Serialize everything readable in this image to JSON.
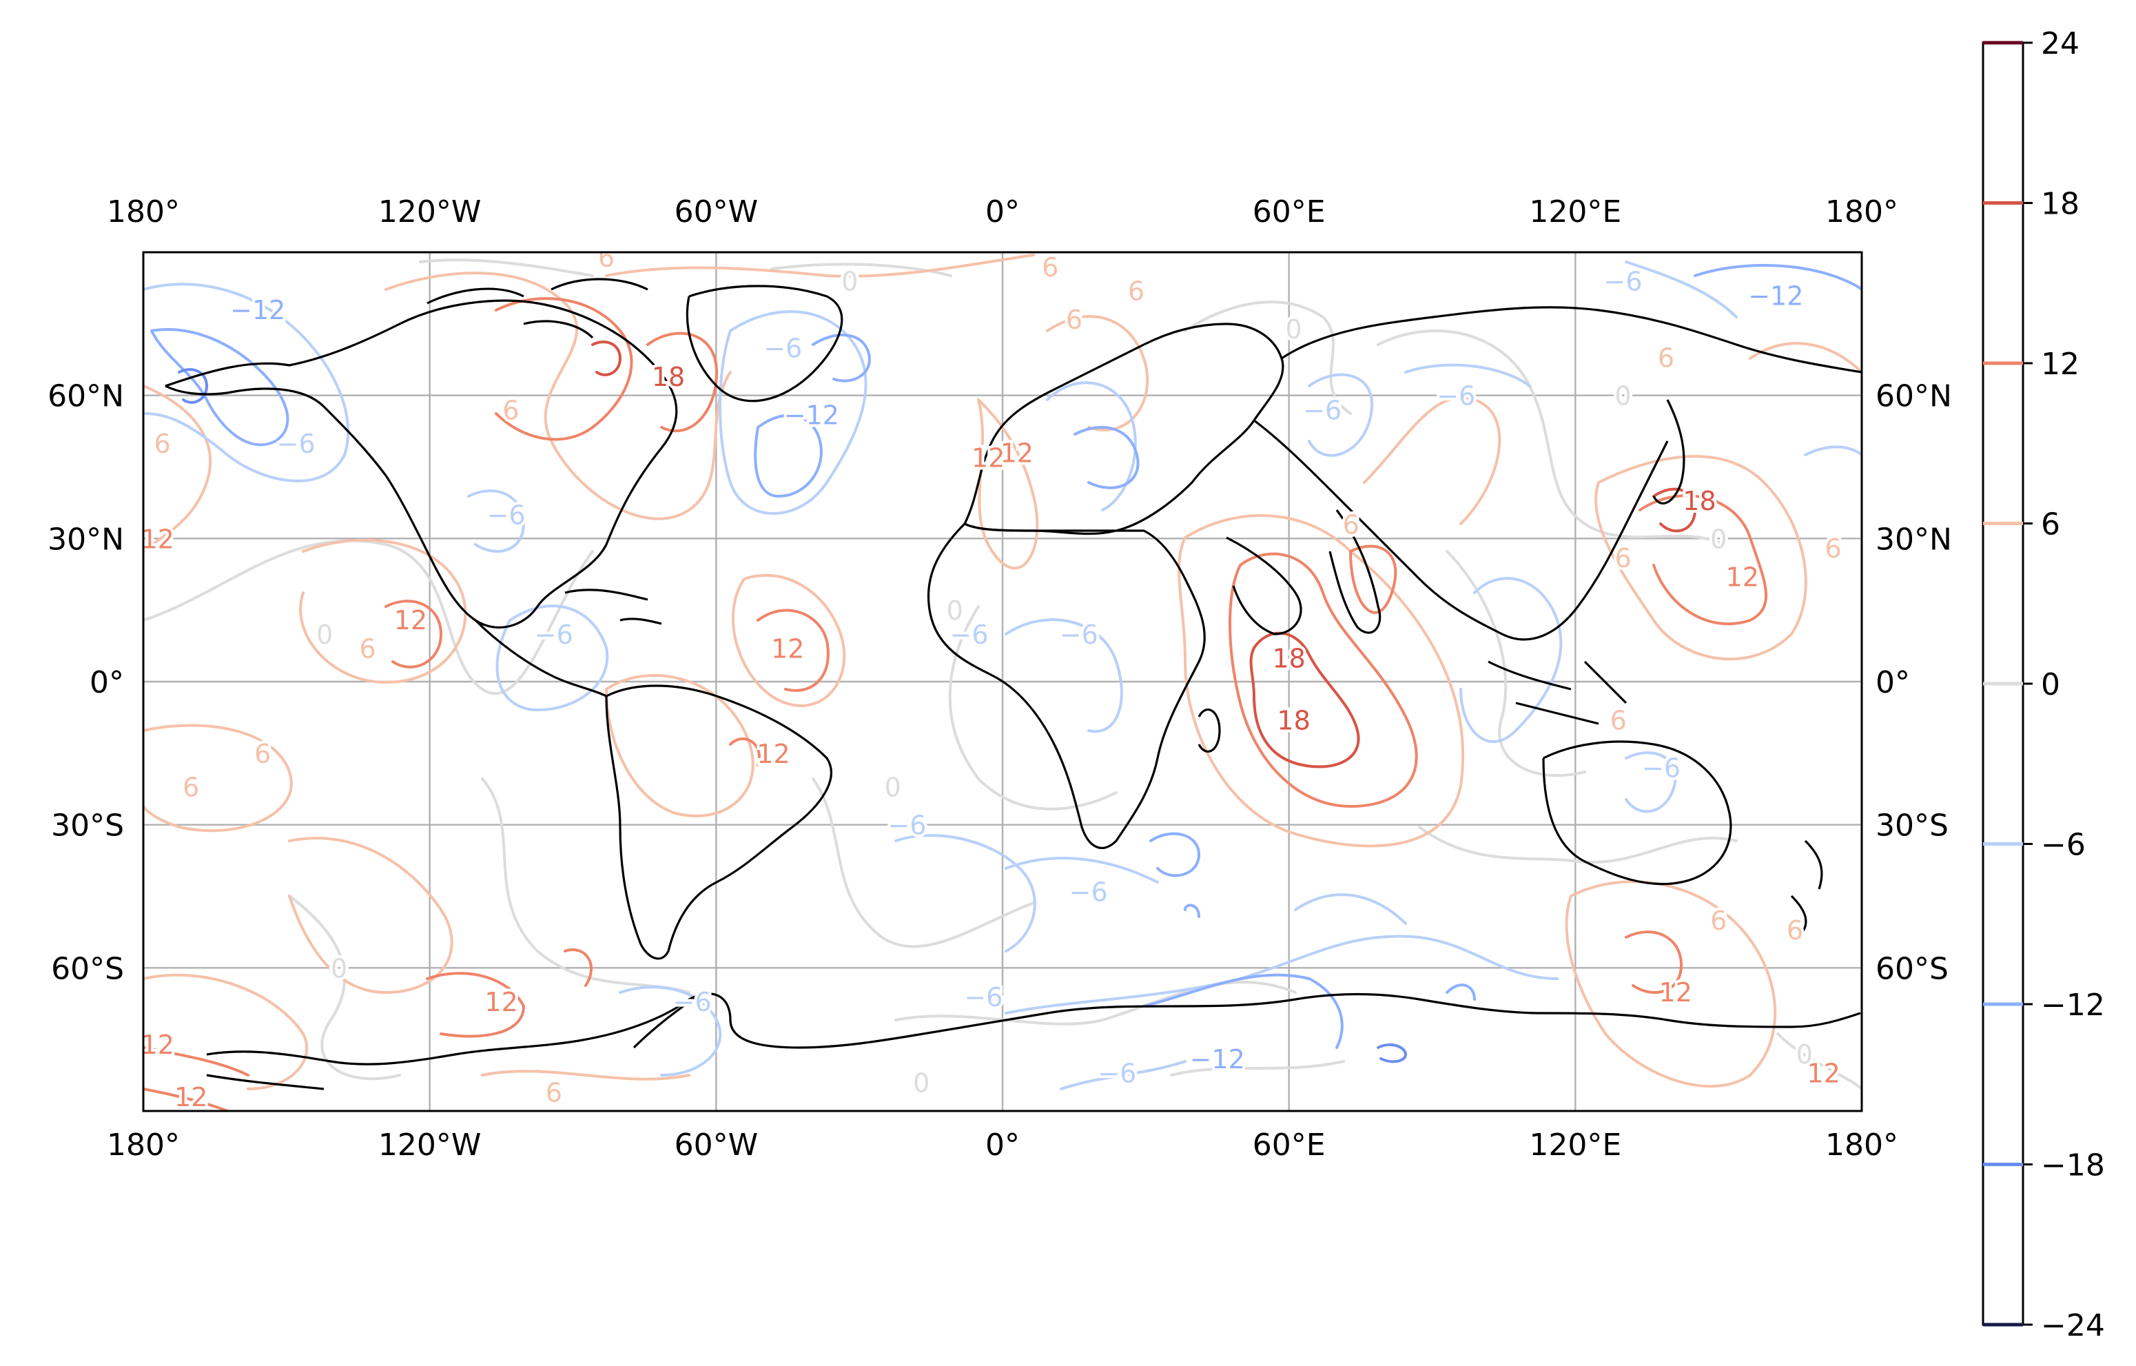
{
  "figure": {
    "longitude_ticks": [
      "180°",
      "120°W",
      "60°W",
      "0°",
      "60°E",
      "120°E",
      "180°"
    ],
    "latitude_ticks": [
      "60°N",
      "30°N",
      "0°",
      "30°S",
      "60°S"
    ],
    "colorbar": {
      "levels": [
        -24,
        -18,
        -12,
        -6,
        0,
        6,
        12,
        18,
        24
      ],
      "tick_labels": [
        "24",
        "18",
        "12",
        "6",
        "0",
        "−6",
        "−12",
        "−18",
        "−24"
      ],
      "colors": {
        "-24": "#3b4cc0",
        "-18": "#6b8df0",
        "-12": "#8caffe",
        "-6": "#b8d0f9",
        "0": "#dcdcdc",
        "6": "#f5c1a9",
        "12": "#ee8468",
        "18": "#d75445",
        "24": "#b40426",
        "edge_top": "#67001f",
        "edge_bottom": "#1a1a4a"
      }
    },
    "contour_labels": [
      {
        "text": "−12",
        "lon": -156,
        "lat": 78,
        "level": -12
      },
      {
        "text": "−6",
        "lon": -148,
        "lat": 50,
        "level": -6
      },
      {
        "text": "6",
        "lon": -176,
        "lat": 50,
        "level": 6
      },
      {
        "text": "12",
        "lon": -177,
        "lat": 30,
        "level": 12
      },
      {
        "text": "−6",
        "lon": -104,
        "lat": 35,
        "level": -6
      },
      {
        "text": "6",
        "lon": -103,
        "lat": 57,
        "level": 6
      },
      {
        "text": "6",
        "lon": -83,
        "lat": 89,
        "level": 6
      },
      {
        "text": "18",
        "lon": -70,
        "lat": 64,
        "level": 18
      },
      {
        "text": "−6",
        "lon": -46,
        "lat": 70,
        "level": -6
      },
      {
        "text": "−12",
        "lon": -40,
        "lat": 56,
        "level": -12
      },
      {
        "text": "12",
        "lon": -124,
        "lat": 13,
        "level": 12
      },
      {
        "text": "0",
        "lon": -142,
        "lat": 10,
        "level": 0
      },
      {
        "text": "6",
        "lon": -133,
        "lat": 7,
        "level": 6
      },
      {
        "text": "−6",
        "lon": -94,
        "lat": 10,
        "level": -6
      },
      {
        "text": "12",
        "lon": -45,
        "lat": 7,
        "level": 12
      },
      {
        "text": "12",
        "lon": -48,
        "lat": -15,
        "level": 12
      },
      {
        "text": "6",
        "lon": -155,
        "lat": -15,
        "level": 6
      },
      {
        "text": "6",
        "lon": -170,
        "lat": -22,
        "level": 6
      },
      {
        "text": "0",
        "lon": -23,
        "lat": -22,
        "level": 0
      },
      {
        "text": "−6",
        "lon": -20,
        "lat": -30,
        "level": -6
      },
      {
        "text": "−6",
        "lon": 18,
        "lat": -44,
        "level": -6
      },
      {
        "text": "−6",
        "lon": 16,
        "lat": 10,
        "level": -6
      },
      {
        "text": "−6",
        "lon": -7,
        "lat": 10,
        "level": -6
      },
      {
        "text": "0",
        "lon": -10,
        "lat": 15,
        "level": 0
      },
      {
        "text": "12",
        "lon": -3,
        "lat": 47,
        "level": 12
      },
      {
        "text": "12",
        "lon": 3,
        "lat": 48,
        "level": 12
      },
      {
        "text": "6",
        "lon": 10,
        "lat": 87,
        "level": 6
      },
      {
        "text": "6",
        "lon": 28,
        "lat": 82,
        "level": 6
      },
      {
        "text": "6",
        "lon": 15,
        "lat": 76,
        "level": 6
      },
      {
        "text": "0",
        "lon": -32,
        "lat": 84,
        "level": 0
      },
      {
        "text": "0",
        "lon": 61,
        "lat": 74,
        "level": 0
      },
      {
        "text": "6",
        "lon": 73,
        "lat": 33,
        "level": 6
      },
      {
        "text": "−6",
        "lon": 67,
        "lat": 57,
        "level": -6
      },
      {
        "text": "−6",
        "lon": 95,
        "lat": 60,
        "level": -6
      },
      {
        "text": "−6",
        "lon": 130,
        "lat": 84,
        "level": -6
      },
      {
        "text": "−12",
        "lon": 162,
        "lat": 81,
        "level": -12
      },
      {
        "text": "6",
        "lon": 139,
        "lat": 68,
        "level": 6
      },
      {
        "text": "18",
        "lon": 61,
        "lat": -8,
        "level": 18
      },
      {
        "text": "18",
        "lon": 60,
        "lat": 5,
        "level": 18
      },
      {
        "text": "18",
        "lon": 146,
        "lat": 38,
        "level": 18
      },
      {
        "text": "12",
        "lon": 155,
        "lat": 22,
        "level": 12
      },
      {
        "text": "6",
        "lon": 130,
        "lat": 26,
        "level": 6
      },
      {
        "text": "6",
        "lon": 174,
        "lat": 28,
        "level": 6
      },
      {
        "text": "0",
        "lon": 150,
        "lat": 30,
        "level": 0
      },
      {
        "text": "0",
        "lon": 130,
        "lat": 60,
        "level": 0
      },
      {
        "text": "−6",
        "lon": 138,
        "lat": -18,
        "level": -6
      },
      {
        "text": "6",
        "lon": 129,
        "lat": -8,
        "level": 6
      },
      {
        "text": "6",
        "lon": 150,
        "lat": -50,
        "level": 6
      },
      {
        "text": "6",
        "lon": 166,
        "lat": -52,
        "level": 6
      },
      {
        "text": "12",
        "lon": 141,
        "lat": -65,
        "level": 12
      },
      {
        "text": "12",
        "lon": 172,
        "lat": -82,
        "level": 12
      },
      {
        "text": "0",
        "lon": 168,
        "lat": -78,
        "level": 0
      },
      {
        "text": "−12",
        "lon": 45,
        "lat": -79,
        "level": -12
      },
      {
        "text": "−6",
        "lon": 24,
        "lat": -82,
        "level": -6
      },
      {
        "text": "−6",
        "lon": -4,
        "lat": -66,
        "level": -6
      },
      {
        "text": "−6",
        "lon": -65,
        "lat": -67,
        "level": -6
      },
      {
        "text": "0",
        "lon": -17,
        "lat": -84,
        "level": 0
      },
      {
        "text": "6",
        "lon": -94,
        "lat": -86,
        "level": 6
      },
      {
        "text": "12",
        "lon": -105,
        "lat": -67,
        "level": 12
      },
      {
        "text": "0",
        "lon": -139,
        "lat": -60,
        "level": 0
      },
      {
        "text": "12",
        "lon": -177,
        "lat": -76,
        "level": 12
      },
      {
        "text": "12",
        "lon": -170,
        "lat": -87,
        "level": 12
      }
    ]
  }
}
